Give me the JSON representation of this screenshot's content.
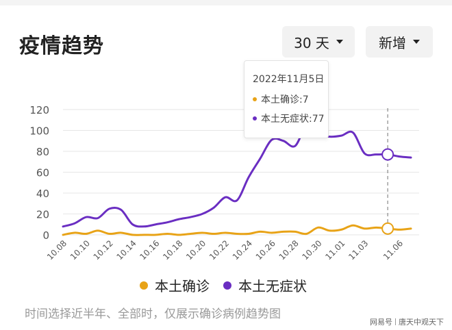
{
  "header": {
    "title": "疫情趋势",
    "range_label": "30 天",
    "mode_label": "新增"
  },
  "colors": {
    "confirmed": "#e8a317",
    "asymptomatic": "#6a2ec2",
    "grid": "#e6e6e6",
    "axis_text": "#555555"
  },
  "tooltip": {
    "date": "2022年11月5日",
    "confirmed_text": "本土确诊:7",
    "asymptomatic_text": "本土无症状:77"
  },
  "legend": {
    "confirmed": "本土确诊",
    "asymptomatic": "本土无症状"
  },
  "footnote": "时间选择近半年、全部时，仅展示确诊病例趋势图",
  "watermark": {
    "left": "网易号",
    "right": "唐天中观天下"
  },
  "chart_data": {
    "type": "line",
    "x_ticks": [
      "10.08",
      "10.10",
      "10.12",
      "10.14",
      "10.16",
      "10.18",
      "10.20",
      "10.22",
      "10.24",
      "10.26",
      "10.28",
      "10.30",
      "11.01",
      "11.03",
      "11.06"
    ],
    "y_ticks": [
      0,
      20,
      40,
      60,
      80,
      100,
      120
    ],
    "ylim": [
      0,
      120
    ],
    "highlight_date": "11.05",
    "series": [
      {
        "name": "本土确诊",
        "color": "#e8a317",
        "x": [
          0,
          1,
          2,
          3,
          4,
          5,
          6,
          7,
          8,
          9,
          10,
          11,
          12,
          13,
          14,
          15,
          16,
          17,
          18,
          19,
          20,
          21,
          22,
          23,
          24,
          25,
          26,
          27,
          28,
          29,
          30
        ],
        "values": [
          0,
          2,
          1,
          4,
          1,
          2,
          0,
          0,
          0,
          1,
          0,
          1,
          2,
          1,
          2,
          1,
          1,
          3,
          2,
          3,
          3,
          1,
          7,
          4,
          5,
          9,
          6,
          7,
          6,
          5,
          6
        ]
      },
      {
        "name": "本土无症状",
        "color": "#6a2ec2",
        "x": [
          0,
          1,
          2,
          3,
          4,
          5,
          6,
          7,
          8,
          9,
          10,
          11,
          12,
          13,
          14,
          15,
          16,
          17,
          18,
          19,
          20,
          21,
          22,
          23,
          24,
          25,
          26,
          27,
          28,
          29,
          30
        ],
        "values": [
          8,
          11,
          17,
          16,
          25,
          24,
          10,
          8,
          10,
          12,
          15,
          17,
          20,
          26,
          36,
          33,
          55,
          73,
          91,
          90,
          85,
          104,
          96,
          94,
          95,
          98,
          78,
          77,
          77,
          75,
          74
        ]
      }
    ]
  }
}
